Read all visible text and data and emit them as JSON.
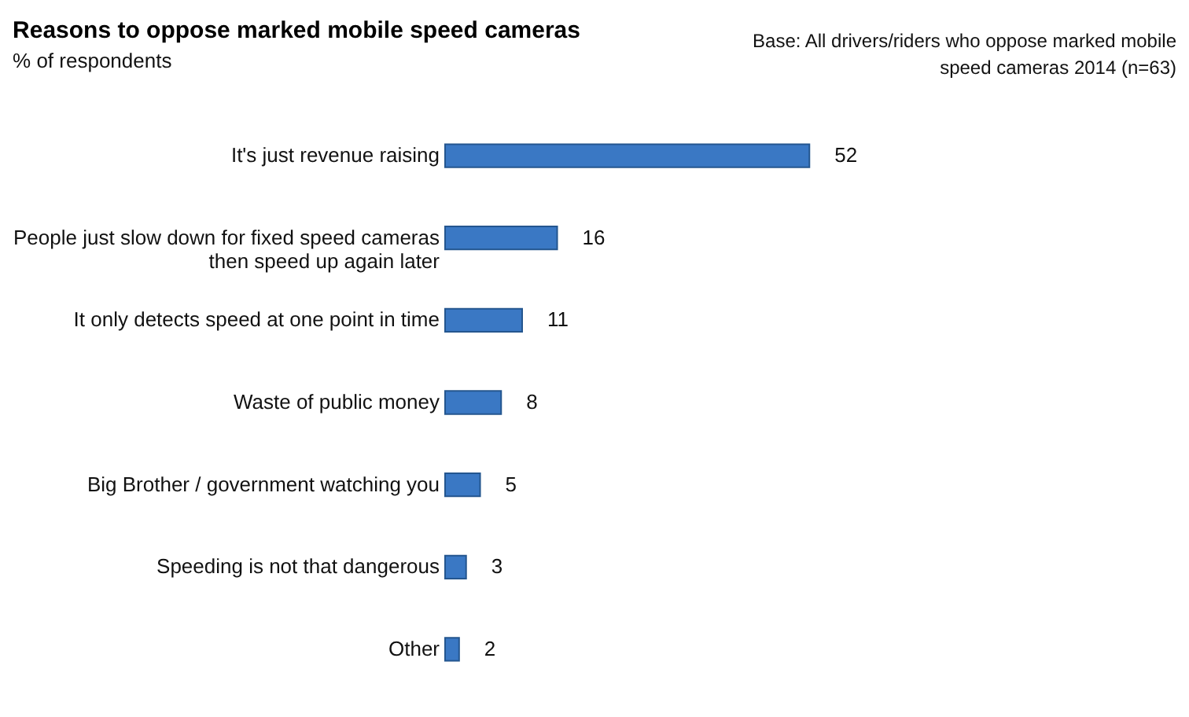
{
  "chart_data": {
    "type": "bar",
    "orientation": "horizontal",
    "title": "Reasons to oppose marked mobile speed cameras",
    "subtitle": "% of respondents",
    "annotations": [
      "Base: All drivers/riders who oppose marked mobile speed cameras 2014 (n=63)"
    ],
    "categories": [
      "It's just revenue raising",
      "People just slow down for fixed speed cameras then speed up again later",
      "It only detects speed at one point in time",
      "Waste of public money",
      "Big Brother / government watching you",
      "Speeding is not that dangerous",
      "Other"
    ],
    "values": [
      52,
      16,
      11,
      8,
      5,
      3,
      2
    ],
    "color": "#3a78c4",
    "data_labels": true
  }
}
